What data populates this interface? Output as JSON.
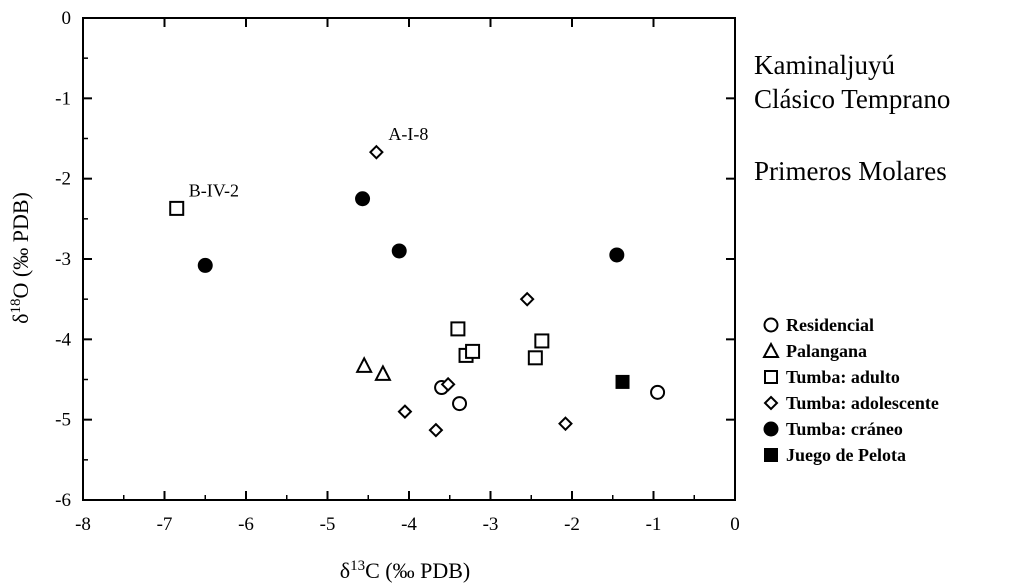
{
  "titles": {
    "line1": "Kaminaljuyú",
    "line2": "Clásico Temprano",
    "line3": "Primeros Molares"
  },
  "axes": {
    "x_title_prefix": "δ",
    "x_title_sup": "13",
    "x_title_suffix": "C  (‰ PDB)",
    "y_title_prefix": "δ",
    "y_title_sup": "18",
    "y_title_suffix": "O  (‰ PDB)"
  },
  "annotations": [
    {
      "text": "A-I-8",
      "x": -4.4,
      "y": -1.67
    },
    {
      "text": "B-IV-2",
      "x": -6.85,
      "y": -2.37
    }
  ],
  "chart_data": {
    "type": "scatter",
    "xlim": [
      -8,
      0
    ],
    "ylim": [
      -6,
      0
    ],
    "xticks": [
      -8,
      -7,
      -6,
      -5,
      -4,
      -3,
      -2,
      -1,
      0
    ],
    "yticks": [
      0,
      -1,
      -2,
      -3,
      -4,
      -5,
      -6
    ],
    "grid": false,
    "legend_position": "right",
    "series": [
      {
        "name": "Residencial",
        "marker": "circle-open",
        "points": [
          [
            -3.6,
            -4.6
          ],
          [
            -3.38,
            -4.8
          ],
          [
            -0.95,
            -4.66
          ]
        ]
      },
      {
        "name": "Palangana",
        "marker": "triangle-open",
        "points": [
          [
            -4.55,
            -4.33
          ],
          [
            -4.32,
            -4.43
          ]
        ]
      },
      {
        "name": "Tumba: adulto",
        "marker": "square-open",
        "points": [
          [
            -6.85,
            -2.37
          ],
          [
            -3.4,
            -3.87
          ],
          [
            -3.3,
            -4.2
          ],
          [
            -3.22,
            -4.15
          ],
          [
            -2.45,
            -4.23
          ],
          [
            -2.37,
            -4.02
          ]
        ]
      },
      {
        "name": "Tumba: adolescente",
        "marker": "diamond-open",
        "points": [
          [
            -4.4,
            -1.67
          ],
          [
            -2.55,
            -3.5
          ],
          [
            -3.52,
            -4.56
          ],
          [
            -4.05,
            -4.9
          ],
          [
            -3.67,
            -5.13
          ],
          [
            -2.08,
            -5.05
          ]
        ]
      },
      {
        "name": "Tumba: cráneo",
        "marker": "circle-filled",
        "points": [
          [
            -6.5,
            -3.08
          ],
          [
            -4.57,
            -2.25
          ],
          [
            -4.12,
            -2.9
          ],
          [
            -1.45,
            -2.95
          ]
        ]
      },
      {
        "name": "Juego de Pelota",
        "marker": "square-filled",
        "points": [
          [
            -1.38,
            -4.53
          ]
        ]
      }
    ]
  }
}
